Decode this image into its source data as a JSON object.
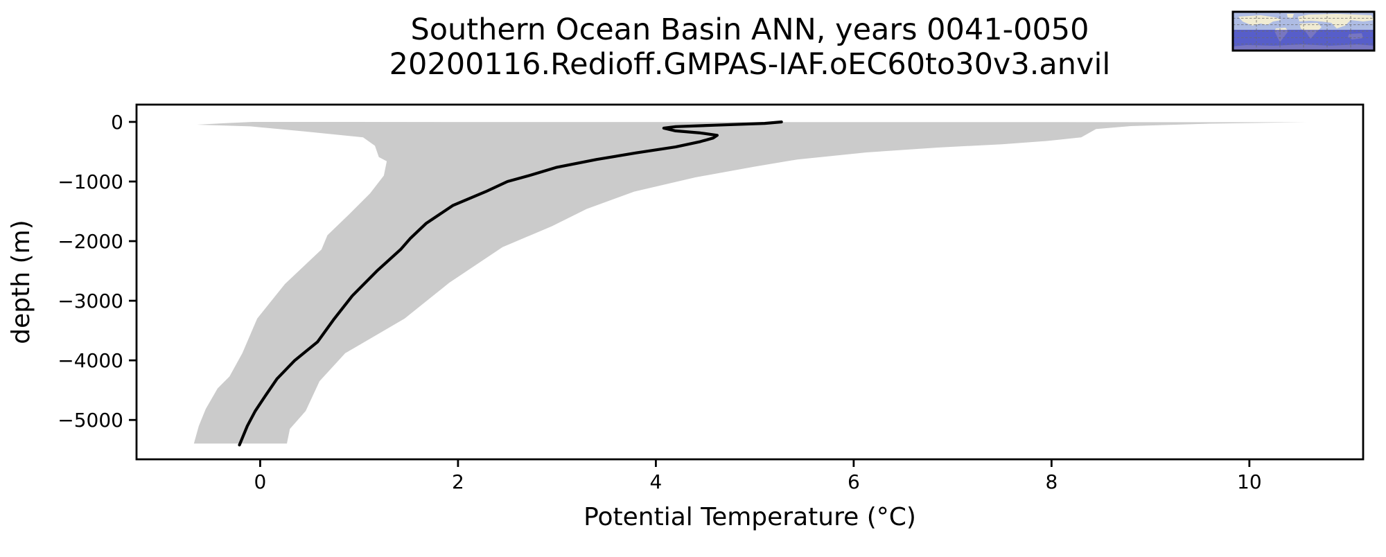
{
  "page": {
    "background_color": "#ffffff"
  },
  "chart_data": {
    "type": "line",
    "title": "Southern Ocean Basin ANN, years 0041-0050",
    "subtitle": "20200116.Redioff.GMPAS-IAF.oEC60to30v3.anvil",
    "xlabel": "Potential Temperature (°C)",
    "ylabel": "depth (m)",
    "xlim": [
      -1.25,
      11.15
    ],
    "ylim": [
      -5660,
      290
    ],
    "xticks": [
      0,
      2,
      4,
      6,
      8,
      10
    ],
    "xtick_labels": [
      "0",
      "2",
      "4",
      "6",
      "8",
      "10"
    ],
    "yticks": [
      0,
      -1000,
      -2000,
      -3000,
      -4000,
      -5000
    ],
    "ytick_labels": [
      "0",
      "−1000",
      "−2000",
      "−3000",
      "−4000",
      "−5000"
    ],
    "grid": false,
    "legend": "none",
    "envelope_color": "#cbcbcb",
    "line_color": "#000000",
    "series": [
      {
        "name": "mean",
        "description": "basin-mean potential temperature profile (°C vs depth m)",
        "points": [
          [
            5.27,
            0
          ],
          [
            5.1,
            -25
          ],
          [
            4.6,
            -55
          ],
          [
            4.2,
            -80
          ],
          [
            4.08,
            -105
          ],
          [
            4.2,
            -150
          ],
          [
            4.45,
            -185
          ],
          [
            4.62,
            -225
          ],
          [
            4.58,
            -270
          ],
          [
            4.45,
            -330
          ],
          [
            4.2,
            -420
          ],
          [
            3.8,
            -520
          ],
          [
            3.4,
            -630
          ],
          [
            3.0,
            -760
          ],
          [
            2.72,
            -900
          ],
          [
            2.5,
            -1000
          ],
          [
            2.28,
            -1170
          ],
          [
            1.95,
            -1400
          ],
          [
            1.68,
            -1700
          ],
          [
            1.52,
            -1950
          ],
          [
            1.42,
            -2140
          ],
          [
            1.18,
            -2500
          ],
          [
            0.93,
            -2920
          ],
          [
            0.75,
            -3300
          ],
          [
            0.58,
            -3690
          ],
          [
            0.35,
            -4000
          ],
          [
            0.17,
            -4310
          ],
          [
            0.05,
            -4600
          ],
          [
            -0.05,
            -4850
          ],
          [
            -0.13,
            -5100
          ],
          [
            -0.21,
            -5420
          ]
        ]
      },
      {
        "name": "envelope_max",
        "description": "maximum temperature envelope (right edge of shaded band)",
        "points": [
          [
            10.58,
            -5
          ],
          [
            9.6,
            -30
          ],
          [
            8.8,
            -70
          ],
          [
            8.45,
            -120
          ],
          [
            8.3,
            -260
          ],
          [
            7.95,
            -320
          ],
          [
            7.5,
            -375
          ],
          [
            6.85,
            -430
          ],
          [
            6.13,
            -512
          ],
          [
            5.43,
            -630
          ],
          [
            5.0,
            -750
          ],
          [
            4.4,
            -930
          ],
          [
            3.78,
            -1170
          ],
          [
            3.3,
            -1460
          ],
          [
            2.95,
            -1750
          ],
          [
            2.45,
            -2100
          ],
          [
            1.91,
            -2700
          ],
          [
            1.46,
            -3300
          ],
          [
            0.86,
            -3880
          ],
          [
            0.6,
            -4350
          ],
          [
            0.46,
            -4850
          ],
          [
            0.3,
            -5150
          ],
          [
            0.27,
            -5395
          ]
        ]
      },
      {
        "name": "envelope_min",
        "description": "minimum temperature envelope (left edge of shaded band)",
        "points": [
          [
            -0.08,
            0
          ],
          [
            -0.35,
            -20
          ],
          [
            -0.64,
            -47
          ],
          [
            -0.1,
            -75
          ],
          [
            0.45,
            -160
          ],
          [
            1.04,
            -260
          ],
          [
            1.16,
            -400
          ],
          [
            1.2,
            -590
          ],
          [
            1.28,
            -660
          ],
          [
            1.25,
            -900
          ],
          [
            1.11,
            -1200
          ],
          [
            0.9,
            -1550
          ],
          [
            0.68,
            -1900
          ],
          [
            0.62,
            -2140
          ],
          [
            0.25,
            -2720
          ],
          [
            -0.03,
            -3300
          ],
          [
            -0.18,
            -3880
          ],
          [
            -0.31,
            -4270
          ],
          [
            -0.43,
            -4470
          ],
          [
            -0.55,
            -4814
          ],
          [
            -0.62,
            -5100
          ],
          [
            -0.67,
            -5395
          ]
        ]
      }
    ]
  },
  "inset_map": {
    "description": "world map inset highlighting the Southern Ocean basin",
    "ocean_color": "#aebce4",
    "land_color": "#f1ecd3",
    "highlight_color": "#0000b0",
    "grid_color": "#6b6b6b",
    "border_color": "#000000"
  }
}
